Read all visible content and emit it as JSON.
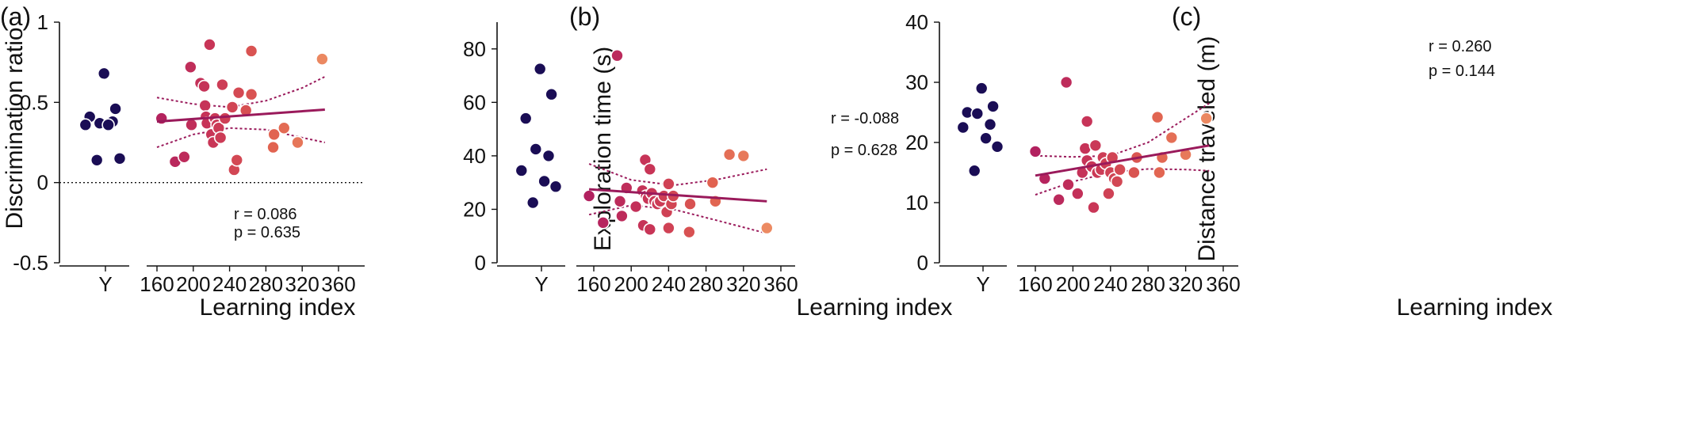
{
  "chart_data": [
    {
      "type": "scatter",
      "panel_label": "(a)",
      "ylabel": "Discrimination ratio",
      "xlabel": "Learning index",
      "ylim": [
        -0.5,
        1
      ],
      "yticks": [
        -0.5,
        0,
        0.5,
        1
      ],
      "ytick_labels": [
        "-0.5",
        "0",
        "0.5",
        "1"
      ],
      "xlim": [
        150,
        370
      ],
      "xticks": [
        160,
        200,
        240,
        280,
        320,
        360
      ],
      "xtick_labels": [
        "160",
        "200",
        "240",
        "280",
        "320",
        "360"
      ],
      "young_label": "Y",
      "reference_line_y": 0,
      "stats": {
        "r": "r  = 0.086",
        "p": "p = 0.635"
      },
      "young_values": [
        0.68,
        0.46,
        0.41,
        0.37,
        0.38,
        0.36,
        0.36,
        0.15,
        0.14
      ],
      "points": [
        {
          "x": 165,
          "y": 0.4
        },
        {
          "x": 180,
          "y": 0.13
        },
        {
          "x": 190,
          "y": 0.16
        },
        {
          "x": 197,
          "y": 0.72
        },
        {
          "x": 198,
          "y": 0.36
        },
        {
          "x": 208,
          "y": 0.62
        },
        {
          "x": 212,
          "y": 0.6
        },
        {
          "x": 213,
          "y": 0.48
        },
        {
          "x": 214,
          "y": 0.41
        },
        {
          "x": 215,
          "y": 0.37
        },
        {
          "x": 218,
          "y": 0.86
        },
        {
          "x": 220,
          "y": 0.3
        },
        {
          "x": 222,
          "y": 0.25
        },
        {
          "x": 224,
          "y": 0.4
        },
        {
          "x": 226,
          "y": 0.36
        },
        {
          "x": 228,
          "y": 0.34
        },
        {
          "x": 230,
          "y": 0.28
        },
        {
          "x": 232,
          "y": 0.61
        },
        {
          "x": 235,
          "y": 0.4
        },
        {
          "x": 243,
          "y": 0.47
        },
        {
          "x": 245,
          "y": 0.08
        },
        {
          "x": 248,
          "y": 0.14
        },
        {
          "x": 250,
          "y": 0.56
        },
        {
          "x": 258,
          "y": 0.45
        },
        {
          "x": 264,
          "y": 0.82
        },
        {
          "x": 264,
          "y": 0.55
        },
        {
          "x": 288,
          "y": 0.22
        },
        {
          "x": 289,
          "y": 0.3
        },
        {
          "x": 300,
          "y": 0.34
        },
        {
          "x": 315,
          "y": 0.25
        },
        {
          "x": 342,
          "y": 0.77
        }
      ],
      "fit": {
        "x": [
          160,
          345
        ],
        "y": [
          0.38,
          0.455
        ]
      },
      "ci_upper": {
        "x": [
          160,
          200,
          240,
          280,
          320,
          345
        ],
        "y": [
          0.53,
          0.49,
          0.47,
          0.51,
          0.59,
          0.66
        ]
      },
      "ci_lower": {
        "x": [
          160,
          200,
          240,
          280,
          320,
          345
        ],
        "y": [
          0.22,
          0.3,
          0.34,
          0.33,
          0.28,
          0.25
        ]
      }
    },
    {
      "type": "scatter",
      "panel_label": "(b)",
      "ylabel": "Exploration time (s)",
      "xlabel": "Learning index",
      "ylim": [
        0,
        90
      ],
      "yticks": [
        0,
        20,
        40,
        60,
        80
      ],
      "ytick_labels": [
        "0",
        "20",
        "40",
        "60",
        "80"
      ],
      "xlim": [
        145,
        370
      ],
      "xticks": [
        160,
        200,
        240,
        280,
        320,
        360
      ],
      "xtick_labels": [
        "160",
        "200",
        "240",
        "280",
        "320",
        "360"
      ],
      "young_label": "Y",
      "stats": {
        "r": "r  = -0.088",
        "p": "p = 0.628"
      },
      "young_values": [
        72.5,
        63,
        54,
        42.5,
        40,
        34.5,
        30.5,
        28.5,
        22.5
      ],
      "points": [
        {
          "x": 155,
          "y": 25
        },
        {
          "x": 170,
          "y": 15
        },
        {
          "x": 185,
          "y": 77.5
        },
        {
          "x": 188,
          "y": 23
        },
        {
          "x": 190,
          "y": 17.5
        },
        {
          "x": 195,
          "y": 28
        },
        {
          "x": 205,
          "y": 21
        },
        {
          "x": 212,
          "y": 27
        },
        {
          "x": 213,
          "y": 14
        },
        {
          "x": 215,
          "y": 38.5
        },
        {
          "x": 216,
          "y": 25
        },
        {
          "x": 218,
          "y": 24
        },
        {
          "x": 220,
          "y": 12.5
        },
        {
          "x": 220,
          "y": 35
        },
        {
          "x": 222,
          "y": 26
        },
        {
          "x": 225,
          "y": 23
        },
        {
          "x": 228,
          "y": 22
        },
        {
          "x": 231,
          "y": 23
        },
        {
          "x": 235,
          "y": 25
        },
        {
          "x": 238,
          "y": 19
        },
        {
          "x": 240,
          "y": 29.5
        },
        {
          "x": 243,
          "y": 22
        },
        {
          "x": 245,
          "y": 25
        },
        {
          "x": 240,
          "y": 13
        },
        {
          "x": 262,
          "y": 11.5
        },
        {
          "x": 263,
          "y": 22
        },
        {
          "x": 287,
          "y": 30
        },
        {
          "x": 290,
          "y": 23
        },
        {
          "x": 305,
          "y": 40.5
        },
        {
          "x": 320,
          "y": 40
        },
        {
          "x": 345,
          "y": 13
        }
      ],
      "fit": {
        "x": [
          155,
          345
        ],
        "y": [
          27.5,
          23
        ]
      },
      "ci_upper": {
        "x": [
          155,
          200,
          245,
          290,
          345
        ],
        "y": [
          37,
          31,
          29,
          31,
          35
        ]
      },
      "ci_lower": {
        "x": [
          155,
          200,
          245,
          290,
          345
        ],
        "y": [
          18,
          21.5,
          20,
          16,
          11
        ]
      }
    },
    {
      "type": "scatter",
      "panel_label": "(c)",
      "ylabel": "Distance traveled (m)",
      "xlabel": "Learning index",
      "ylim": [
        0,
        40
      ],
      "yticks": [
        0,
        10,
        20,
        30,
        40
      ],
      "ytick_labels": [
        "0",
        "10",
        "20",
        "30",
        "40"
      ],
      "xlim": [
        150,
        370
      ],
      "xticks": [
        160,
        200,
        240,
        280,
        320,
        360
      ],
      "xtick_labels": [
        "160",
        "200",
        "240",
        "280",
        "320",
        "360"
      ],
      "young_label": "Y",
      "stats": {
        "r": "r  = 0.260",
        "p": "p = 0.144"
      },
      "young_values": [
        29,
        26,
        25,
        24.8,
        23,
        22.5,
        20.7,
        19.3,
        15.3
      ],
      "points": [
        {
          "x": 160,
          "y": 18.5
        },
        {
          "x": 170,
          "y": 14
        },
        {
          "x": 185,
          "y": 10.5
        },
        {
          "x": 193,
          "y": 30
        },
        {
          "x": 195,
          "y": 13
        },
        {
          "x": 205,
          "y": 11.5
        },
        {
          "x": 210,
          "y": 15
        },
        {
          "x": 213,
          "y": 19
        },
        {
          "x": 215,
          "y": 23.5
        },
        {
          "x": 215,
          "y": 17
        },
        {
          "x": 220,
          "y": 16
        },
        {
          "x": 222,
          "y": 9.2
        },
        {
          "x": 224,
          "y": 19.5
        },
        {
          "x": 226,
          "y": 15
        },
        {
          "x": 230,
          "y": 15.5
        },
        {
          "x": 232,
          "y": 17.5
        },
        {
          "x": 235,
          "y": 16.5
        },
        {
          "x": 238,
          "y": 11.5
        },
        {
          "x": 240,
          "y": 15
        },
        {
          "x": 242,
          "y": 17.5
        },
        {
          "x": 244,
          "y": 14
        },
        {
          "x": 247,
          "y": 13.5
        },
        {
          "x": 250,
          "y": 15.5
        },
        {
          "x": 265,
          "y": 15
        },
        {
          "x": 268,
          "y": 17.5
        },
        {
          "x": 290,
          "y": 24.2
        },
        {
          "x": 292,
          "y": 15
        },
        {
          "x": 295,
          "y": 17.5
        },
        {
          "x": 305,
          "y": 20.8
        },
        {
          "x": 320,
          "y": 18
        },
        {
          "x": 342,
          "y": 24
        }
      ],
      "fit": {
        "x": [
          160,
          345
        ],
        "y": [
          14.5,
          19.5
        ]
      },
      "ci_upper": {
        "x": [
          160,
          200,
          240,
          280,
          320,
          345
        ],
        "y": [
          17.8,
          17.6,
          17.8,
          20,
          24,
          26.5
        ]
      },
      "ci_lower": {
        "x": [
          160,
          200,
          240,
          280,
          320,
          345
        ],
        "y": [
          11.3,
          13.5,
          15,
          15.6,
          15.5,
          15.3
        ]
      }
    }
  ],
  "colors": {
    "young": "#1a0d55",
    "gradient": [
      "#b2215f",
      "#c93657",
      "#e0604f",
      "#ec8a62"
    ],
    "fit": "#9a1a5b"
  }
}
